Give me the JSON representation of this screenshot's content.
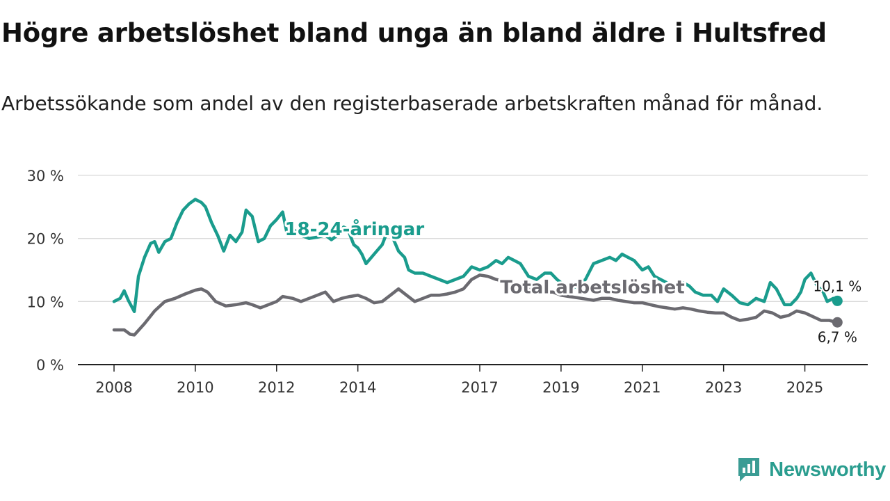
{
  "title": "Högre arbetslöshet bland unga än bland äldre i Hultsfred",
  "subtitle": "Arbetssökande som andel av den registerbaserade arbetskraften månad för månad.",
  "brand": {
    "name": "Newsworthy",
    "icon": "newsworthy-chat-chart-icon",
    "color": "#3a9c94"
  },
  "chart_data": {
    "type": "line",
    "title": "Högre arbetslöshet bland unga än bland äldre i Hultsfred",
    "xlabel": "",
    "ylabel": "",
    "xlim": [
      2008.0,
      2026.0
    ],
    "ylim": [
      0,
      30
    ],
    "y_ticks": [
      {
        "value": 0,
        "label": "0 %"
      },
      {
        "value": 10,
        "label": "10 %"
      },
      {
        "value": 20,
        "label": "20 %"
      },
      {
        "value": 30,
        "label": "30 %"
      }
    ],
    "x_ticks": [
      {
        "value": 2008,
        "label": "2008"
      },
      {
        "value": 2010,
        "label": "2010"
      },
      {
        "value": 2012,
        "label": "2012"
      },
      {
        "value": 2014,
        "label": "2014"
      },
      {
        "value": 2017,
        "label": "2017"
      },
      {
        "value": 2019,
        "label": "2019"
      },
      {
        "value": 2021,
        "label": "2021"
      },
      {
        "value": 2023,
        "label": "2023"
      },
      {
        "value": 2025,
        "label": "2025"
      }
    ],
    "grid": true,
    "series": [
      {
        "name": "18-24-åringar",
        "color": "#1a9c8d",
        "end_label": "10,1 %",
        "points": [
          [
            2008.0,
            10.0
          ],
          [
            2008.15,
            10.5
          ],
          [
            2008.25,
            11.7
          ],
          [
            2008.35,
            10.2
          ],
          [
            2008.5,
            8.4
          ],
          [
            2008.6,
            14.0
          ],
          [
            2008.75,
            17.0
          ],
          [
            2008.9,
            19.2
          ],
          [
            2009.0,
            19.5
          ],
          [
            2009.1,
            17.8
          ],
          [
            2009.25,
            19.5
          ],
          [
            2009.4,
            20.0
          ],
          [
            2009.55,
            22.5
          ],
          [
            2009.7,
            24.5
          ],
          [
            2009.85,
            25.5
          ],
          [
            2010.0,
            26.2
          ],
          [
            2010.15,
            25.7
          ],
          [
            2010.25,
            25.0
          ],
          [
            2010.4,
            22.5
          ],
          [
            2010.55,
            20.5
          ],
          [
            2010.7,
            18.0
          ],
          [
            2010.85,
            20.5
          ],
          [
            2011.0,
            19.5
          ],
          [
            2011.15,
            21.0
          ],
          [
            2011.25,
            24.5
          ],
          [
            2011.4,
            23.5
          ],
          [
            2011.55,
            19.5
          ],
          [
            2011.7,
            20.0
          ],
          [
            2011.85,
            22.0
          ],
          [
            2012.0,
            23.0
          ],
          [
            2012.15,
            24.2
          ],
          [
            2012.25,
            21.0
          ],
          [
            2012.4,
            21.5
          ],
          [
            2012.6,
            20.5
          ],
          [
            2012.8,
            20.0
          ],
          [
            2013.0,
            20.2
          ],
          [
            2013.2,
            20.5
          ],
          [
            2013.35,
            19.8
          ],
          [
            2013.5,
            20.5
          ],
          [
            2013.65,
            21.8
          ],
          [
            2013.75,
            21.5
          ],
          [
            2013.9,
            19.0
          ],
          [
            2014.0,
            18.5
          ],
          [
            2014.1,
            17.5
          ],
          [
            2014.2,
            16.0
          ],
          [
            2014.4,
            17.5
          ],
          [
            2014.6,
            19.0
          ],
          [
            2014.75,
            21.5
          ],
          [
            2014.9,
            19.5
          ],
          [
            2015.0,
            18.0
          ],
          [
            2015.15,
            17.0
          ],
          [
            2015.25,
            15.0
          ],
          [
            2015.4,
            14.5
          ],
          [
            2015.6,
            14.5
          ],
          [
            2015.8,
            14.0
          ],
          [
            2016.0,
            13.5
          ],
          [
            2016.2,
            13.0
          ],
          [
            2016.4,
            13.5
          ],
          [
            2016.6,
            14.0
          ],
          [
            2016.8,
            15.5
          ],
          [
            2017.0,
            15.0
          ],
          [
            2017.2,
            15.5
          ],
          [
            2017.4,
            16.5
          ],
          [
            2017.55,
            16.0
          ],
          [
            2017.7,
            17.0
          ],
          [
            2017.85,
            16.5
          ],
          [
            2018.0,
            16.0
          ],
          [
            2018.2,
            14.0
          ],
          [
            2018.4,
            13.5
          ],
          [
            2018.6,
            14.5
          ],
          [
            2018.75,
            14.5
          ],
          [
            2018.9,
            13.5
          ],
          [
            2019.1,
            12.5
          ],
          [
            2019.25,
            12.0
          ],
          [
            2019.4,
            12.5
          ],
          [
            2019.6,
            13.5
          ],
          [
            2019.8,
            16.0
          ],
          [
            2020.0,
            16.5
          ],
          [
            2020.2,
            17.0
          ],
          [
            2020.35,
            16.5
          ],
          [
            2020.5,
            17.5
          ],
          [
            2020.65,
            17.0
          ],
          [
            2020.8,
            16.5
          ],
          [
            2021.0,
            15.0
          ],
          [
            2021.15,
            15.5
          ],
          [
            2021.3,
            14.0
          ],
          [
            2021.45,
            13.5
          ],
          [
            2021.6,
            13.0
          ],
          [
            2021.8,
            12.5
          ],
          [
            2022.0,
            13.0
          ],
          [
            2022.15,
            12.5
          ],
          [
            2022.3,
            11.5
          ],
          [
            2022.5,
            11.0
          ],
          [
            2022.7,
            11.0
          ],
          [
            2022.85,
            10.0
          ],
          [
            2023.0,
            12.0
          ],
          [
            2023.2,
            11.0
          ],
          [
            2023.4,
            9.8
          ],
          [
            2023.6,
            9.5
          ],
          [
            2023.8,
            10.5
          ],
          [
            2024.0,
            10.0
          ],
          [
            2024.15,
            13.0
          ],
          [
            2024.3,
            12.0
          ],
          [
            2024.5,
            9.5
          ],
          [
            2024.65,
            9.5
          ],
          [
            2024.8,
            10.5
          ],
          [
            2024.9,
            11.5
          ],
          [
            2025.0,
            13.5
          ],
          [
            2025.15,
            14.5
          ],
          [
            2025.3,
            12.5
          ],
          [
            2025.45,
            11.5
          ],
          [
            2025.55,
            10.0
          ],
          [
            2025.7,
            10.5
          ],
          [
            2025.8,
            10.1
          ]
        ]
      },
      {
        "name": "Total arbetslöshet",
        "color": "#6b6a70",
        "end_label": "6,7 %",
        "points": [
          [
            2008.0,
            5.5
          ],
          [
            2008.25,
            5.5
          ],
          [
            2008.4,
            4.8
          ],
          [
            2008.5,
            4.7
          ],
          [
            2008.75,
            6.5
          ],
          [
            2009.0,
            8.5
          ],
          [
            2009.25,
            10.0
          ],
          [
            2009.5,
            10.5
          ],
          [
            2009.75,
            11.2
          ],
          [
            2010.0,
            11.8
          ],
          [
            2010.15,
            12.0
          ],
          [
            2010.3,
            11.5
          ],
          [
            2010.5,
            10.0
          ],
          [
            2010.75,
            9.3
          ],
          [
            2011.0,
            9.5
          ],
          [
            2011.25,
            9.8
          ],
          [
            2011.4,
            9.5
          ],
          [
            2011.6,
            9.0
          ],
          [
            2011.8,
            9.5
          ],
          [
            2012.0,
            10.0
          ],
          [
            2012.15,
            10.8
          ],
          [
            2012.4,
            10.5
          ],
          [
            2012.6,
            10.0
          ],
          [
            2012.8,
            10.5
          ],
          [
            2013.0,
            11.0
          ],
          [
            2013.2,
            11.5
          ],
          [
            2013.4,
            10.0
          ],
          [
            2013.6,
            10.5
          ],
          [
            2013.8,
            10.8
          ],
          [
            2014.0,
            11.0
          ],
          [
            2014.2,
            10.5
          ],
          [
            2014.4,
            9.8
          ],
          [
            2014.6,
            10.0
          ],
          [
            2014.8,
            11.0
          ],
          [
            2015.0,
            12.0
          ],
          [
            2015.2,
            11.0
          ],
          [
            2015.4,
            10.0
          ],
          [
            2015.6,
            10.5
          ],
          [
            2015.8,
            11.0
          ],
          [
            2016.0,
            11.0
          ],
          [
            2016.2,
            11.2
          ],
          [
            2016.4,
            11.5
          ],
          [
            2016.6,
            12.0
          ],
          [
            2016.8,
            13.5
          ],
          [
            2017.0,
            14.2
          ],
          [
            2017.2,
            14.0
          ],
          [
            2017.4,
            13.5
          ],
          [
            2017.6,
            13.2
          ],
          [
            2017.8,
            13.0
          ],
          [
            2018.0,
            12.5
          ],
          [
            2018.2,
            12.0
          ],
          [
            2018.4,
            11.8
          ],
          [
            2018.6,
            11.5
          ],
          [
            2018.8,
            11.5
          ],
          [
            2019.0,
            11.0
          ],
          [
            2019.2,
            10.8
          ],
          [
            2019.4,
            10.6
          ],
          [
            2019.6,
            10.4
          ],
          [
            2019.8,
            10.2
          ],
          [
            2020.0,
            10.5
          ],
          [
            2020.2,
            10.5
          ],
          [
            2020.4,
            10.2
          ],
          [
            2020.6,
            10.0
          ],
          [
            2020.8,
            9.8
          ],
          [
            2021.0,
            9.8
          ],
          [
            2021.2,
            9.5
          ],
          [
            2021.4,
            9.2
          ],
          [
            2021.6,
            9.0
          ],
          [
            2021.8,
            8.8
          ],
          [
            2022.0,
            9.0
          ],
          [
            2022.2,
            8.8
          ],
          [
            2022.4,
            8.5
          ],
          [
            2022.6,
            8.3
          ],
          [
            2022.8,
            8.2
          ],
          [
            2023.0,
            8.2
          ],
          [
            2023.2,
            7.5
          ],
          [
            2023.4,
            7.0
          ],
          [
            2023.6,
            7.2
          ],
          [
            2023.8,
            7.5
          ],
          [
            2024.0,
            8.5
          ],
          [
            2024.2,
            8.2
          ],
          [
            2024.4,
            7.5
          ],
          [
            2024.6,
            7.8
          ],
          [
            2024.8,
            8.5
          ],
          [
            2025.0,
            8.2
          ],
          [
            2025.2,
            7.6
          ],
          [
            2025.4,
            7.0
          ],
          [
            2025.6,
            7.0
          ],
          [
            2025.8,
            6.7
          ]
        ]
      }
    ],
    "annotations": [
      {
        "text": "18-24-åringar",
        "series": "18-24-åringar",
        "x": 2012.2,
        "y": 20.5
      },
      {
        "text": "Total arbetslöshet",
        "series": "Total arbetslöshet",
        "x": 2017.5,
        "y": 11.3
      }
    ]
  }
}
